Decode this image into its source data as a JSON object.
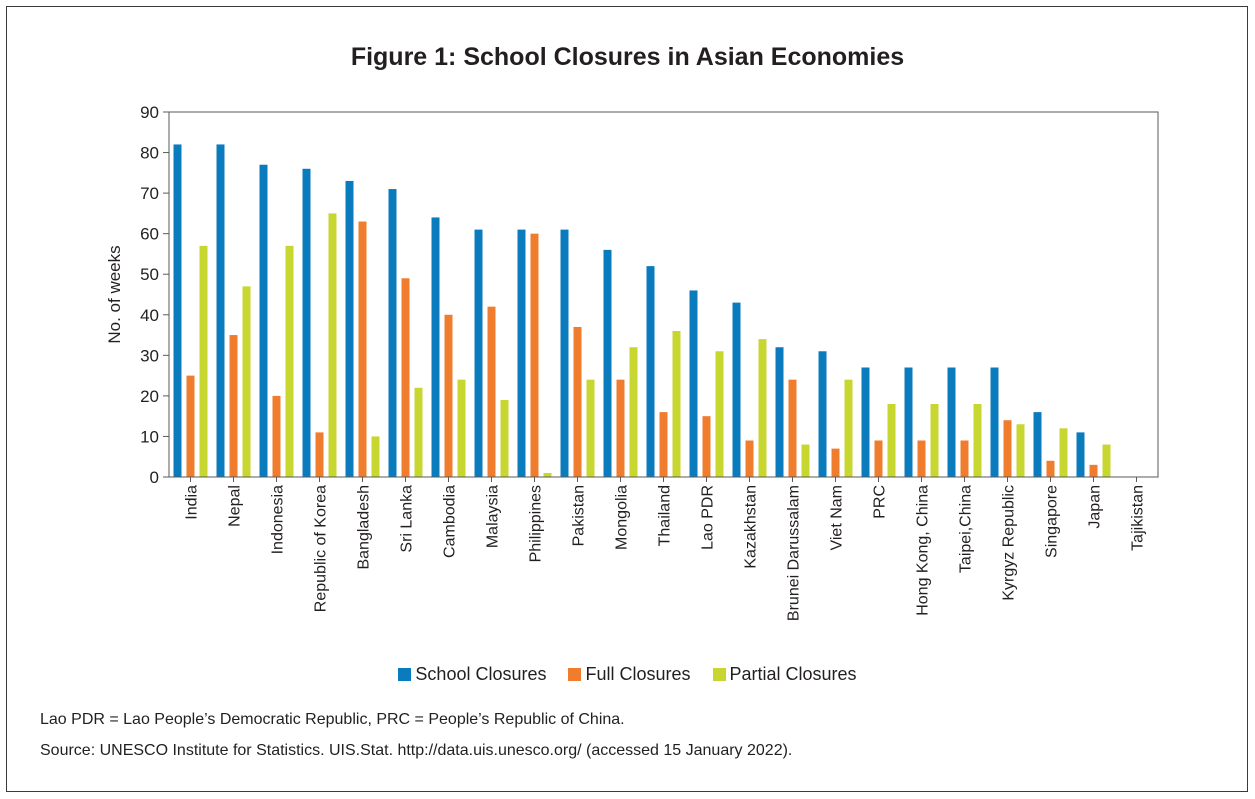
{
  "chart_data": {
    "type": "bar",
    "title": "Figure 1: School Closures in Asian Economies",
    "ylabel": "No. of weeks",
    "xlabel": "",
    "ylim": [
      0,
      90
    ],
    "yticks": [
      0,
      10,
      20,
      30,
      40,
      50,
      60,
      70,
      80,
      90
    ],
    "grid": false,
    "legend_position": "bottom",
    "categories": [
      "India",
      "Nepal",
      "Indonesia",
      "Republic of Korea",
      "Bangladesh",
      "Sri Lanka",
      "Cambodia",
      "Malaysia",
      "Philippines",
      "Pakistan",
      "Mongolia",
      "Thailand",
      "Lao PDR",
      "Kazakhstan",
      "Brunei Darussalam",
      "Viet Nam",
      "PRC",
      "Hong Kong, China",
      "Taipei,China",
      "Kyrgyz Republic",
      "Singapore",
      "Japan",
      "Tajikistan"
    ],
    "series": [
      {
        "name": "School Closures",
        "color": "#0a7bbd",
        "values": [
          82,
          82,
          77,
          76,
          73,
          71,
          64,
          61,
          61,
          61,
          56,
          52,
          46,
          43,
          32,
          31,
          27,
          27,
          27,
          27,
          16,
          11,
          0
        ]
      },
      {
        "name": "Full Closures",
        "color": "#f07c2e",
        "values": [
          25,
          35,
          20,
          11,
          63,
          49,
          40,
          42,
          60,
          37,
          24,
          16,
          15,
          9,
          24,
          7,
          9,
          9,
          9,
          14,
          4,
          3,
          0
        ]
      },
      {
        "name": "Partial Closures",
        "color": "#c8d630",
        "values": [
          57,
          47,
          57,
          65,
          10,
          22,
          24,
          19,
          1,
          24,
          32,
          36,
          31,
          34,
          8,
          24,
          18,
          18,
          18,
          13,
          12,
          8,
          0
        ]
      }
    ]
  },
  "notes": {
    "abbreviations": "Lao PDR = Lao People’s Democratic Republic, PRC = People’s Republic of China.",
    "source": "Source: UNESCO Institute for Statistics. UIS.Stat. http://data.uis.unesco.org/ (accessed 15 January 2022)."
  }
}
